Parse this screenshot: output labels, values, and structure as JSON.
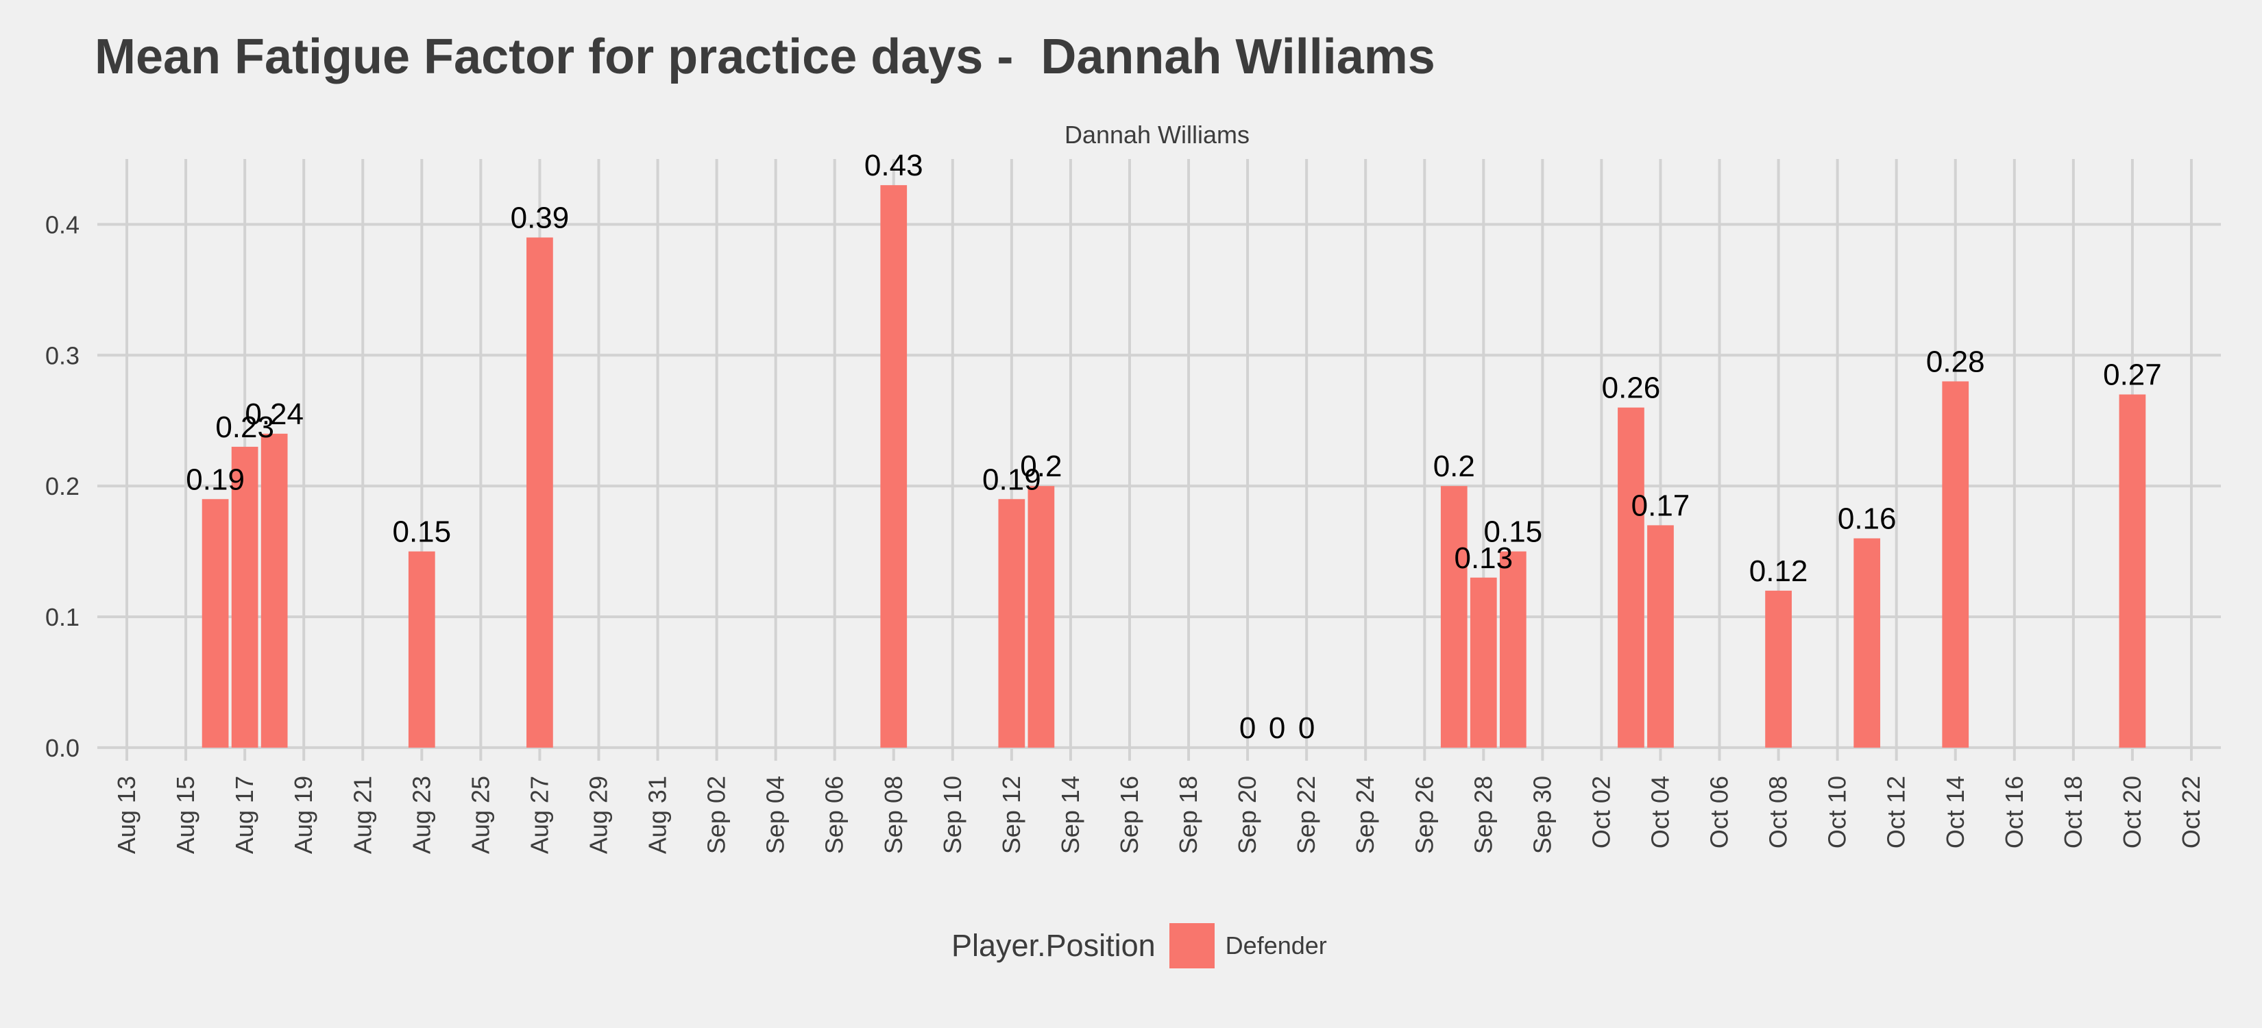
{
  "chart_data": {
    "type": "bar",
    "title": "Mean Fatigue Factor for practice days -  Dannah Williams",
    "facet": "Dannah Williams",
    "xlabel": "",
    "ylabel": "",
    "x_axis": {
      "type": "date",
      "range": [
        "2022-08-12",
        "2022-10-23"
      ],
      "tick_labels": [
        "Aug 13",
        "Aug 15",
        "Aug 17",
        "Aug 19",
        "Aug 21",
        "Aug 23",
        "Aug 25",
        "Aug 27",
        "Aug 29",
        "Aug 31",
        "Sep 02",
        "Sep 04",
        "Sep 06",
        "Sep 08",
        "Sep 10",
        "Sep 12",
        "Sep 14",
        "Sep 16",
        "Sep 18",
        "Sep 20",
        "Sep 22",
        "Sep 24",
        "Sep 26",
        "Sep 28",
        "Sep 30",
        "Oct 02",
        "Oct 04",
        "Oct 06",
        "Oct 08",
        "Oct 10",
        "Oct 12",
        "Oct 14",
        "Oct 16",
        "Oct 18",
        "Oct 20",
        "Oct 22"
      ]
    },
    "y_axis": {
      "range": [
        -0.01,
        0.45
      ],
      "ticks": [
        0.0,
        0.1,
        0.2,
        0.3,
        0.4
      ],
      "tick_labels": [
        "0.0",
        "0.1",
        "0.2",
        "0.3",
        "0.4"
      ]
    },
    "grid": true,
    "legend": {
      "title": "Player.Position",
      "position": "bottom",
      "entries": [
        {
          "label": "Defender",
          "color": "#f8766d"
        }
      ]
    },
    "series": [
      {
        "name": "Defender",
        "color": "#f8766d",
        "points": [
          {
            "x": "2022-08-16",
            "y": 0.19,
            "label": "0.19"
          },
          {
            "x": "2022-08-17",
            "y": 0.23,
            "label": "0.23"
          },
          {
            "x": "2022-08-18",
            "y": 0.24,
            "label": "0.24"
          },
          {
            "x": "2022-08-23",
            "y": 0.15,
            "label": "0.15"
          },
          {
            "x": "2022-08-27",
            "y": 0.39,
            "label": "0.39"
          },
          {
            "x": "2022-09-08",
            "y": 0.43,
            "label": "0.43"
          },
          {
            "x": "2022-09-12",
            "y": 0.19,
            "label": "0.19"
          },
          {
            "x": "2022-09-13",
            "y": 0.2,
            "label": "0.2"
          },
          {
            "x": "2022-09-20",
            "y": 0,
            "label": "0"
          },
          {
            "x": "2022-09-21",
            "y": 0,
            "label": "0"
          },
          {
            "x": "2022-09-22",
            "y": 0,
            "label": "0"
          },
          {
            "x": "2022-09-27",
            "y": 0.2,
            "label": "0.2"
          },
          {
            "x": "2022-09-28",
            "y": 0.13,
            "label": "0.13"
          },
          {
            "x": "2022-09-29",
            "y": 0.15,
            "label": "0.15"
          },
          {
            "x": "2022-10-03",
            "y": 0.26,
            "label": "0.26"
          },
          {
            "x": "2022-10-04",
            "y": 0.17,
            "label": "0.17"
          },
          {
            "x": "2022-10-08",
            "y": 0.12,
            "label": "0.12"
          },
          {
            "x": "2022-10-11",
            "y": 0.16,
            "label": "0.16"
          },
          {
            "x": "2022-10-14",
            "y": 0.28,
            "label": "0.28"
          },
          {
            "x": "2022-10-20",
            "y": 0.27,
            "label": "0.27"
          }
        ]
      }
    ]
  }
}
